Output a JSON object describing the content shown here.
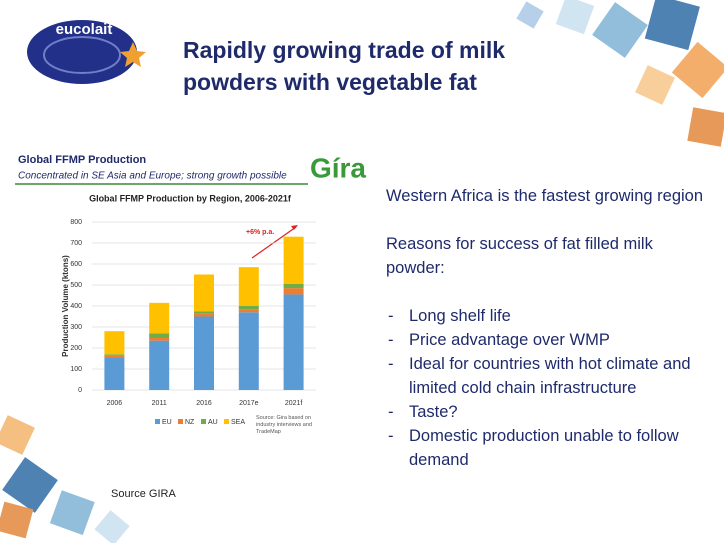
{
  "logo": "eucolait",
  "title_lines": [
    "Rapidly growing trade of milk",
    "powders with vegetable fat"
  ],
  "panel": {
    "heading": "Global FFMP Production",
    "subheading": "Concentrated in SE Asia and Europe; strong growth possible",
    "brand": "Gíra"
  },
  "chart_data": {
    "type": "stacked-bar",
    "title": "Global FFMP Production by Region, 2006-2021f",
    "y_label": "Production Volume (ktons)",
    "categories": [
      "2006",
      "2011",
      "2016",
      "2017e",
      "2021f"
    ],
    "series": [
      {
        "name": "EU",
        "color": "#5b9bd5",
        "values": [
          155,
          235,
          350,
          370,
          455
        ]
      },
      {
        "name": "NZ",
        "color": "#ed7d31",
        "values": [
          10,
          15,
          15,
          15,
          30
        ]
      },
      {
        "name": "AU",
        "color": "#70ad47",
        "values": [
          5,
          20,
          10,
          15,
          20
        ]
      },
      {
        "name": "SEA",
        "color": "#ffc000",
        "values": [
          110,
          145,
          175,
          185,
          225
        ]
      }
    ],
    "ylim": [
      0,
      800
    ],
    "yticks": [
      0,
      100,
      200,
      300,
      400,
      500,
      600,
      700,
      800
    ],
    "grid": true,
    "annotation": "+6% p.a.",
    "source_note": "Source: Gira based on industry interviews and TradeMap"
  },
  "body": {
    "paragraphs": [
      "Western Africa is the fastest growing region",
      "Reasons for success of fat filled milk powder:"
    ],
    "bullets": [
      "Long shelf life",
      "Price advantage over WMP",
      "Ideal for countries with hot climate and limited cold chain infrastructure",
      "Taste?",
      "Domestic production unable to follow demand"
    ]
  },
  "source": "Source GIRA"
}
